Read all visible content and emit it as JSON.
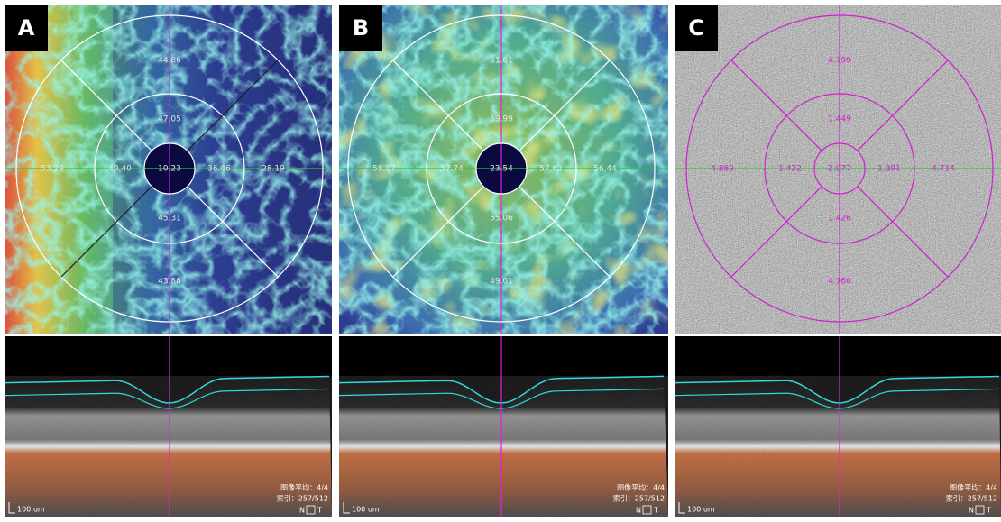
{
  "panels": [
    {
      "label": "A",
      "sectors": [
        "44.86",
        "47.05",
        "10.23",
        "53.29",
        "40.40",
        "36.46",
        "28.19",
        "45.31",
        "43.88"
      ]
    },
    {
      "label": "B",
      "sectors": [
        "51.61",
        "59.99",
        "23.54",
        "58.07",
        "57.74",
        "57.62",
        "56.44",
        "55.06",
        "49.01"
      ]
    },
    {
      "label": "C",
      "sectors": [
        "4.799",
        "1.449",
        "2.077",
        "4.889",
        "1.422",
        "1.391",
        "4.714",
        "1.426",
        "4.760"
      ]
    }
  ],
  "oct": {
    "averaging": "图像平均：4/4",
    "index": "索引：257/512",
    "nasal": "N",
    "temporal": "T",
    "scale": "100 um"
  }
}
